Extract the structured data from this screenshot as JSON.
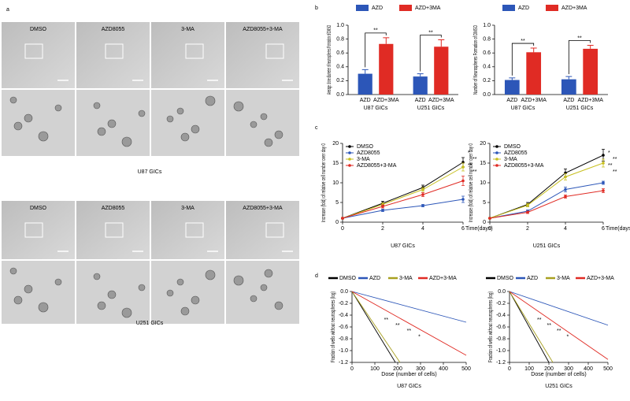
{
  "panel_labels": [
    "a",
    "b",
    "c",
    "d"
  ],
  "panel_a": {
    "conditions": [
      "DMSO",
      "AZD8055",
      "3-MA",
      "AZD8055+3-MA"
    ],
    "cell_lines": [
      "U87 GICs",
      "U251 GICs"
    ]
  },
  "chart_data": [
    {
      "type": "bar",
      "ylabel": "Average clone diameter of neurospheres Formation of DMSO",
      "categories": [
        "U87 GICs",
        "U251 GICs"
      ],
      "series": [
        {
          "name": "AZD",
          "color": "#2c56b8",
          "values": [
            0.3,
            0.26
          ],
          "errors": [
            0.06,
            0.04
          ]
        },
        {
          "name": "AZD+3MA",
          "color": "#e02b24",
          "values": [
            0.73,
            0.69
          ],
          "errors": [
            0.09,
            0.1
          ]
        }
      ],
      "ylim": [
        0,
        1
      ],
      "yticks": [
        {
          "value": 0,
          "label": "0.0"
        },
        {
          "value": 0.2,
          "label": "0.2"
        },
        {
          "value": 0.4,
          "label": "0.4"
        },
        {
          "value": 0.6,
          "label": "0.6"
        },
        {
          "value": 0.8,
          "label": "0.8"
        },
        {
          "value": 1,
          "label": "1.0"
        }
      ],
      "annotations": [
        "**",
        "**"
      ],
      "legend": "top"
    },
    {
      "type": "bar",
      "ylabel": "Number of Neurospheres Formation of DMSO",
      "categories": [
        "U87 GICs",
        "U251 GICs"
      ],
      "series": [
        {
          "name": "AZD",
          "color": "#2c56b8",
          "values": [
            0.21,
            0.22
          ],
          "errors": [
            0.03,
            0.04
          ]
        },
        {
          "name": "AZD+3MA",
          "color": "#e02b24",
          "values": [
            0.61,
            0.66
          ],
          "errors": [
            0.06,
            0.05
          ]
        }
      ],
      "ylim": [
        0,
        1
      ],
      "yticks": [
        {
          "value": 0,
          "label": "0.0"
        },
        {
          "value": 0.2,
          "label": "0.2"
        },
        {
          "value": 0.4,
          "label": "0.4"
        },
        {
          "value": 0.6,
          "label": "0.6"
        },
        {
          "value": 0.8,
          "label": "0.8"
        },
        {
          "value": 1,
          "label": "1.0"
        }
      ],
      "annotations": [
        "**",
        "**"
      ],
      "legend": "top"
    },
    {
      "type": "line",
      "title": "U87 GICs",
      "ylabel": "Increase (fold) of relative cell number over day 0",
      "xlabel": "Time(days)",
      "x": [
        0,
        2,
        4,
        6
      ],
      "xlim": [
        0,
        6
      ],
      "xticks": [
        0,
        2,
        4,
        6
      ],
      "ylim": [
        0,
        20
      ],
      "yticks": [
        0,
        5,
        10,
        15,
        20
      ],
      "legend": "upper left",
      "markers": true,
      "series": [
        {
          "name": "DMSO",
          "color": "#000000",
          "values": [
            1,
            4.8,
            8.8,
            15.2
          ],
          "errors": [
            0.2,
            0.5,
            0.6,
            1.2
          ]
        },
        {
          "name": "AZD8055",
          "color": "#2c56b8",
          "values": [
            1,
            3,
            4.2,
            5.8
          ],
          "errors": [
            0.1,
            0.3,
            0.3,
            0.8
          ]
        },
        {
          "name": "3-MA",
          "color": "#c8c020",
          "values": [
            1,
            4.5,
            8.3,
            14
          ],
          "errors": [
            0.2,
            0.4,
            0.5,
            1
          ]
        },
        {
          "name": "AZD8055+3-MA",
          "color": "#e02b24",
          "values": [
            1,
            4,
            7,
            10.5
          ],
          "errors": [
            0.2,
            0.4,
            0.5,
            1.2
          ]
        }
      ],
      "annotations": [
        "*",
        "**",
        "**",
        "**"
      ]
    },
    {
      "type": "line",
      "title": "U251 GICs",
      "ylabel": "Increase (fold) of relative cell number over day 0",
      "xlabel": "Time(days)",
      "x": [
        0,
        2,
        4,
        6
      ],
      "xlim": [
        0,
        6
      ],
      "xticks": [
        0,
        2,
        4,
        6
      ],
      "ylim": [
        0,
        20
      ],
      "yticks": [
        0,
        5,
        10,
        15,
        20
      ],
      "legend": "upper left",
      "markers": true,
      "series": [
        {
          "name": "DMSO",
          "color": "#000000",
          "values": [
            1,
            4.5,
            12.5,
            17
          ],
          "errors": [
            0.2,
            0.5,
            1,
            1.5
          ]
        },
        {
          "name": "AZD8055",
          "color": "#2c56b8",
          "values": [
            1,
            2.8,
            8.3,
            10
          ],
          "errors": [
            0.1,
            0.3,
            0.6,
            0.4
          ]
        },
        {
          "name": "3-MA",
          "color": "#c8c020",
          "values": [
            1,
            4.3,
            11.5,
            15
          ],
          "errors": [
            0.2,
            0.4,
            0.8,
            1
          ]
        },
        {
          "name": "AZD8055+3-MA",
          "color": "#e02b24",
          "values": [
            1,
            2.5,
            6.5,
            8
          ],
          "errors": [
            0.1,
            0.3,
            0.4,
            0.5
          ]
        }
      ],
      "annotations": [
        "*",
        "**",
        "**",
        "**"
      ]
    },
    {
      "type": "line",
      "title": "U87 GICs",
      "ylabel": "Fraction of wells without neurospheres (log)",
      "xlabel": "Dose (number of cells)",
      "xlim": [
        0,
        500
      ],
      "xticks": [
        0,
        100,
        200,
        300,
        400,
        500
      ],
      "ylim": [
        -1.2,
        0
      ],
      "yticks": [
        {
          "value": 0,
          "label": "0.0"
        },
        {
          "value": -0.2,
          "label": "-0.2"
        },
        {
          "value": -0.4,
          "label": "-0.4"
        },
        {
          "value": -0.6,
          "label": "-0.6"
        },
        {
          "value": -0.8,
          "label": "-0.8"
        },
        {
          "value": -1,
          "label": "-1.0"
        },
        {
          "value": -1.2,
          "label": "-1.2"
        }
      ],
      "legend": "top",
      "markers": false,
      "series": [
        {
          "name": "DMSO",
          "color": "#000000",
          "x": [
            0,
            190
          ],
          "values": [
            0,
            -1.2
          ]
        },
        {
          "name": "AZD",
          "color": "#2c56b8",
          "x": [
            0,
            500
          ],
          "values": [
            0,
            -0.52
          ]
        },
        {
          "name": "3-MA",
          "color": "#a8a020",
          "x": [
            0,
            210
          ],
          "values": [
            0,
            -1.2
          ]
        },
        {
          "name": "AZD+3-MA",
          "color": "#e02b24",
          "x": [
            0,
            500
          ],
          "values": [
            0,
            -1.08
          ]
        }
      ],
      "annotations": [
        "**",
        "**",
        "**",
        "*"
      ]
    },
    {
      "type": "line",
      "title": "U251 GICs",
      "ylabel": "Fraction of wells without neurospheres (log)",
      "xlabel": "Dose (number of cells)",
      "xlim": [
        0,
        500
      ],
      "xticks": [
        0,
        100,
        200,
        300,
        400,
        500
      ],
      "ylim": [
        -1.2,
        0
      ],
      "yticks": [
        {
          "value": 0,
          "label": "0.0"
        },
        {
          "value": -0.2,
          "label": "-0.2"
        },
        {
          "value": -0.4,
          "label": "-0.4"
        },
        {
          "value": -0.6,
          "label": "-0.6"
        },
        {
          "value": -0.8,
          "label": "-0.8"
        },
        {
          "value": -1,
          "label": "-1.0"
        },
        {
          "value": -1.2,
          "label": "-1.2"
        }
      ],
      "legend": "top",
      "markers": false,
      "series": [
        {
          "name": "DMSO",
          "color": "#000000",
          "x": [
            0,
            200
          ],
          "values": [
            0,
            -1.2
          ]
        },
        {
          "name": "AZD",
          "color": "#2c56b8",
          "x": [
            0,
            500
          ],
          "values": [
            0,
            -0.57
          ]
        },
        {
          "name": "3-MA",
          "color": "#a8a020",
          "x": [
            0,
            220
          ],
          "values": [
            0,
            -1.2
          ]
        },
        {
          "name": "AZD+3-MA",
          "color": "#e02b24",
          "x": [
            0,
            500
          ],
          "values": [
            0,
            -1.15
          ]
        }
      ],
      "annotations": [
        "**",
        "**",
        "**",
        "*"
      ]
    }
  ]
}
